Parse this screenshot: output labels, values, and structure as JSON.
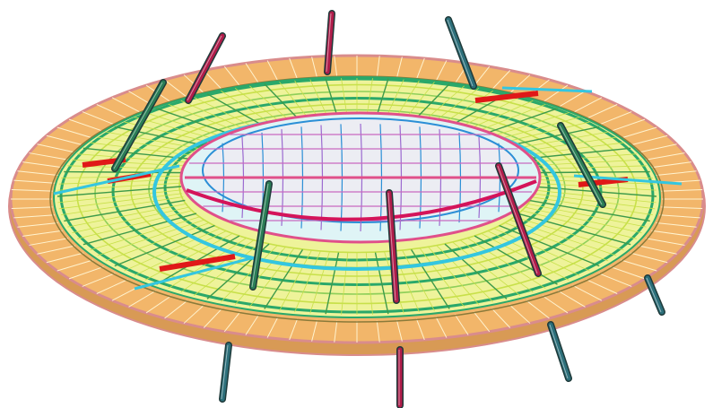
{
  "figure": {
    "subject": "stadium-roof-structural-model",
    "mast_count": 12,
    "colors": {
      "background": "#ffffff",
      "outer_ring": "#f2b66a",
      "outer_ring_edge": "#d98c8c",
      "ring_panels": "#e8c98a",
      "main_grid": "#c8e04a",
      "ring_beam": "#2aa86a",
      "truss_highlight": "#d4145a",
      "inner_roof_fill": "#dff4f6",
      "inner_frame": "#e0508a",
      "inner_frame_alt": "#2b8fd6",
      "cyan_strip": "#34c6e0",
      "red_truss": "#e01818",
      "mast_green": "#2a7d55",
      "mast_teal": "#2c6f7a",
      "mast_red": "#b01c4a"
    }
  }
}
